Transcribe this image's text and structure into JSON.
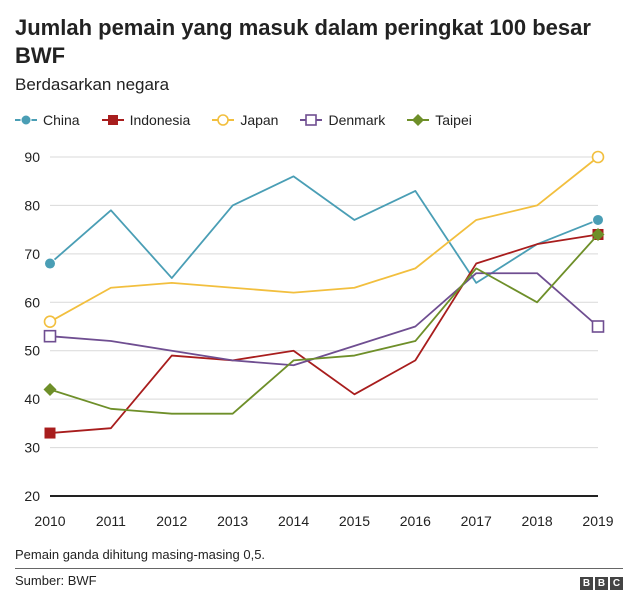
{
  "title": "Jumlah pemain yang masuk dalam peringkat 100 besar BWF",
  "subtitle": "Berdasarkan negara",
  "footnote": "Pemain ganda dihitung masing-masing 0,5.",
  "source": "Sumber: BWF",
  "brand_logo": {
    "letters": [
      "B",
      "B",
      "C"
    ]
  },
  "chart_data": {
    "type": "line",
    "title": "Jumlah pemain yang masuk dalam peringkat 100 besar BWF",
    "subtitle": "Berdasarkan negara",
    "xlabel": "",
    "ylabel": "",
    "x": [
      "2010",
      "2011",
      "2012",
      "2013",
      "2014",
      "2015",
      "2016",
      "2017",
      "2018",
      "2019"
    ],
    "ylim": [
      20,
      90
    ],
    "yticks": [
      "20",
      "30",
      "40",
      "50",
      "60",
      "70",
      "80",
      "90"
    ],
    "grid": true,
    "legend_position": "top",
    "series": [
      {
        "name": "China",
        "color": "#4a9eb5",
        "marker": "circle-filled",
        "values": [
          68,
          79,
          65,
          80,
          86,
          77,
          83,
          64,
          72,
          77
        ]
      },
      {
        "name": "Indonesia",
        "color": "#a81d1d",
        "marker": "square-filled",
        "values": [
          33,
          34,
          49,
          48,
          50,
          41,
          48,
          68,
          72,
          74
        ]
      },
      {
        "name": "Japan",
        "color": "#f2bf3e",
        "marker": "circle-open",
        "values": [
          56,
          63,
          64,
          63,
          62,
          63,
          67,
          77,
          80,
          90
        ]
      },
      {
        "name": "Denmark",
        "color": "#6f4e91",
        "marker": "square-open",
        "values": [
          53,
          52,
          50,
          48,
          47,
          51,
          55,
          66,
          66,
          55
        ]
      },
      {
        "name": "Taipei",
        "color": "#6e8f29",
        "marker": "diamond-filled",
        "values": [
          42,
          38,
          37,
          37,
          48,
          49,
          52,
          67,
          60,
          74
        ]
      }
    ]
  }
}
